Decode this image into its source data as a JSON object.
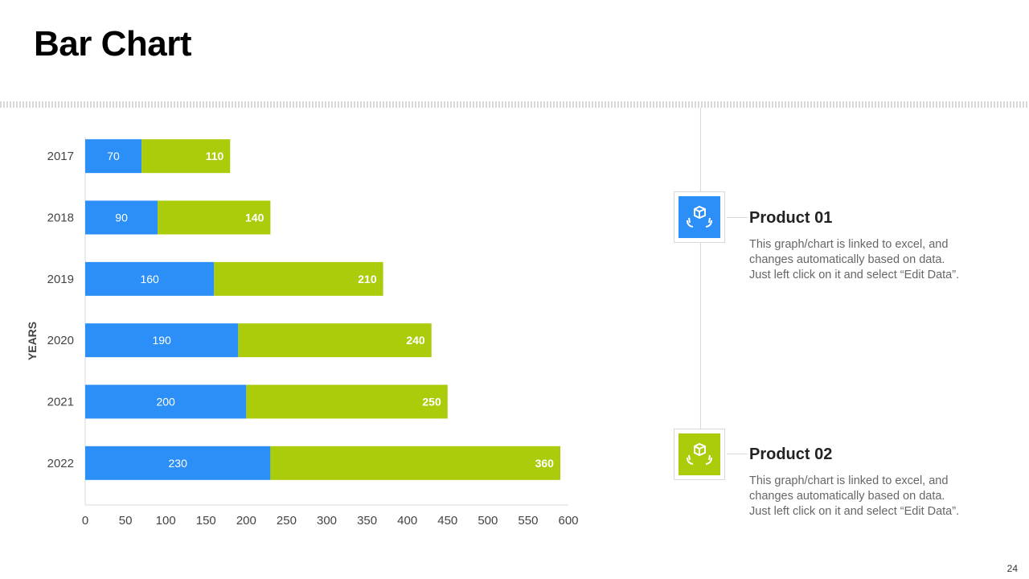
{
  "title": "Bar Chart",
  "page_number": "24",
  "colors": {
    "series1": "#2B8FF7",
    "series2": "#AACC0B"
  },
  "products": [
    {
      "title": "Product 01",
      "description": "This graph/chart is linked to excel, and\nchanges automatically based on data.\nJust left click on it and select “Edit Data”.",
      "icon": "box-hands-icon"
    },
    {
      "title": "Product 02",
      "description": "This graph/chart is linked to excel, and\nchanges automatically based on data.\nJust left click on it and select “Edit Data”.",
      "icon": "box-hands-icon"
    }
  ],
  "chart_data": {
    "type": "bar",
    "orientation": "horizontal",
    "stacked": true,
    "categories": [
      "2017",
      "2018",
      "2019",
      "2020",
      "2021",
      "2022"
    ],
    "series": [
      {
        "name": "Product 01",
        "values": [
          70,
          90,
          160,
          190,
          200,
          230
        ]
      },
      {
        "name": "Product 02",
        "values": [
          110,
          140,
          210,
          240,
          250,
          360
        ]
      }
    ],
    "title": "",
    "xlabel": "",
    "ylabel": "YEARS",
    "xlim": [
      0,
      600
    ],
    "xticks": [
      "0",
      "50",
      "100",
      "150",
      "200",
      "250",
      "300",
      "350",
      "400",
      "450",
      "500",
      "550",
      "600"
    ],
    "grid": false,
    "legend": "none"
  }
}
